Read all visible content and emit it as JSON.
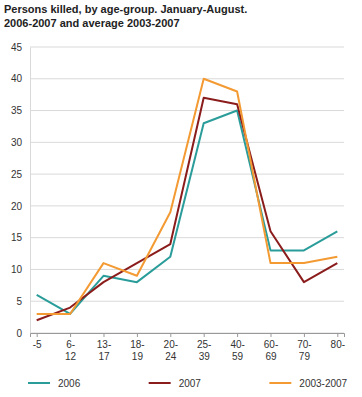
{
  "chart_data": {
    "type": "line",
    "title": "Persons killed, by age-group. January-August.",
    "subtitle": "2006-2007 and average 2003-2007",
    "categories": [
      "-5",
      "6-12",
      "13-17",
      "18-19",
      "20-24",
      "25-39",
      "40-59",
      "60-69",
      "70-79",
      "80-"
    ],
    "series": [
      {
        "name": "2006",
        "color": "#2a9d9a",
        "values": [
          6,
          3,
          9,
          8,
          12,
          33,
          35,
          13,
          13,
          16
        ]
      },
      {
        "name": "2007",
        "color": "#8b1c1c",
        "values": [
          2,
          4,
          8,
          11,
          14,
          37,
          36,
          16,
          8,
          11
        ]
      },
      {
        "name": "2003-2007",
        "color": "#f39a33",
        "values": [
          3,
          3,
          11,
          9,
          19,
          40,
          38,
          11,
          11,
          12
        ]
      }
    ],
    "ylim": [
      0,
      45
    ],
    "yticks": [
      0,
      5,
      10,
      15,
      20,
      25,
      30,
      35,
      40,
      45
    ],
    "grid": true,
    "legend": "bottom"
  }
}
